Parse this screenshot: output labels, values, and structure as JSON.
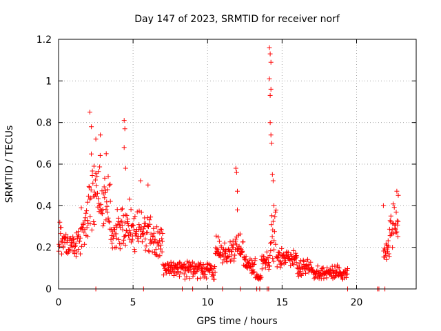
{
  "chart_data": {
    "type": "scatter",
    "title": "Day 147 of 2023, SRMTID for receiver norf",
    "xlabel": "GPS time / hours",
    "ylabel": "SRMTID / TECUs",
    "xlim": [
      0,
      24
    ],
    "ylim": [
      0,
      1.2
    ],
    "x_ticks": [
      0,
      5,
      10,
      15,
      20
    ],
    "y_ticks": [
      0,
      0.2,
      0.4,
      0.6,
      0.8,
      1,
      1.2
    ],
    "x_tick_labels": [
      "0",
      "5",
      "10",
      "15",
      "20"
    ],
    "y_tick_labels": [
      "0",
      "0.2",
      "0.4",
      "0.6",
      "0.8",
      "1",
      "1.2"
    ],
    "grid": true,
    "marker": "plus",
    "color": "#ff0000",
    "series": [
      {
        "name": "SRMTID",
        "segments": [
          {
            "from": 0.0,
            "to": 0.5,
            "base": 0.25,
            "spread": 0.1
          },
          {
            "from": 0.5,
            "to": 1.5,
            "base": 0.22,
            "spread": 0.09
          },
          {
            "from": 1.5,
            "to": 2.0,
            "base": 0.3,
            "spread": 0.12
          },
          {
            "from": 2.0,
            "to": 2.8,
            "base": 0.45,
            "spread": 0.2
          },
          {
            "from": 2.8,
            "to": 3.5,
            "base": 0.4,
            "spread": 0.16
          },
          {
            "from": 3.5,
            "to": 4.2,
            "base": 0.28,
            "spread": 0.12
          },
          {
            "from": 4.2,
            "to": 5.0,
            "base": 0.3,
            "spread": 0.14
          },
          {
            "from": 5.0,
            "to": 6.2,
            "base": 0.28,
            "spread": 0.12
          },
          {
            "from": 6.2,
            "to": 7.0,
            "base": 0.22,
            "spread": 0.08
          },
          {
            "from": 7.0,
            "to": 8.0,
            "base": 0.1,
            "spread": 0.04
          },
          {
            "from": 8.0,
            "to": 10.5,
            "base": 0.09,
            "spread": 0.05
          },
          {
            "from": 10.5,
            "to": 11.8,
            "base": 0.18,
            "spread": 0.09
          },
          {
            "from": 11.8,
            "to": 12.4,
            "base": 0.2,
            "spread": 0.08
          },
          {
            "from": 12.4,
            "to": 13.2,
            "base": 0.12,
            "spread": 0.05
          },
          {
            "from": 13.2,
            "to": 13.6,
            "base": 0.06,
            "spread": 0.02
          },
          {
            "from": 13.6,
            "to": 14.2,
            "base": 0.14,
            "spread": 0.05
          },
          {
            "from": 14.2,
            "to": 14.6,
            "base": 0.25,
            "spread": 0.15
          },
          {
            "from": 14.6,
            "to": 16.0,
            "base": 0.15,
            "spread": 0.05
          },
          {
            "from": 16.0,
            "to": 17.0,
            "base": 0.1,
            "spread": 0.05
          },
          {
            "from": 17.0,
            "to": 19.4,
            "base": 0.08,
            "spread": 0.04
          },
          {
            "from": 21.8,
            "to": 22.2,
            "base": 0.18,
            "spread": 0.07
          },
          {
            "from": 22.2,
            "to": 22.8,
            "base": 0.3,
            "spread": 0.12
          }
        ],
        "peaks": [
          {
            "x": 2.1,
            "y": 0.85
          },
          {
            "x": 2.2,
            "y": 0.78
          },
          {
            "x": 2.5,
            "y": 0.72
          },
          {
            "x": 2.8,
            "y": 0.74
          },
          {
            "x": 3.2,
            "y": 0.65
          },
          {
            "x": 4.4,
            "y": 0.81
          },
          {
            "x": 4.45,
            "y": 0.77
          },
          {
            "x": 4.4,
            "y": 0.68
          },
          {
            "x": 4.5,
            "y": 0.58
          },
          {
            "x": 5.5,
            "y": 0.52
          },
          {
            "x": 6.0,
            "y": 0.5
          },
          {
            "x": 11.9,
            "y": 0.58
          },
          {
            "x": 11.95,
            "y": 0.56
          },
          {
            "x": 12.0,
            "y": 0.47
          },
          {
            "x": 12.0,
            "y": 0.38
          },
          {
            "x": 14.15,
            "y": 1.16
          },
          {
            "x": 14.2,
            "y": 1.13
          },
          {
            "x": 14.25,
            "y": 1.09
          },
          {
            "x": 14.15,
            "y": 1.01
          },
          {
            "x": 14.25,
            "y": 0.96
          },
          {
            "x": 14.2,
            "y": 0.93
          },
          {
            "x": 14.2,
            "y": 0.8
          },
          {
            "x": 14.25,
            "y": 0.74
          },
          {
            "x": 14.3,
            "y": 0.7
          },
          {
            "x": 14.35,
            "y": 0.55
          },
          {
            "x": 14.4,
            "y": 0.52
          },
          {
            "x": 14.45,
            "y": 0.4
          },
          {
            "x": 22.7,
            "y": 0.47
          },
          {
            "x": 22.8,
            "y": 0.45
          },
          {
            "x": 21.8,
            "y": 0.4
          }
        ],
        "zero_markers": [
          2.5,
          5.7,
          8.3,
          9.0,
          11.0,
          12.2,
          13.3,
          13.5,
          14.0,
          14.1,
          19.4,
          21.4,
          21.5,
          21.9
        ]
      }
    ]
  }
}
